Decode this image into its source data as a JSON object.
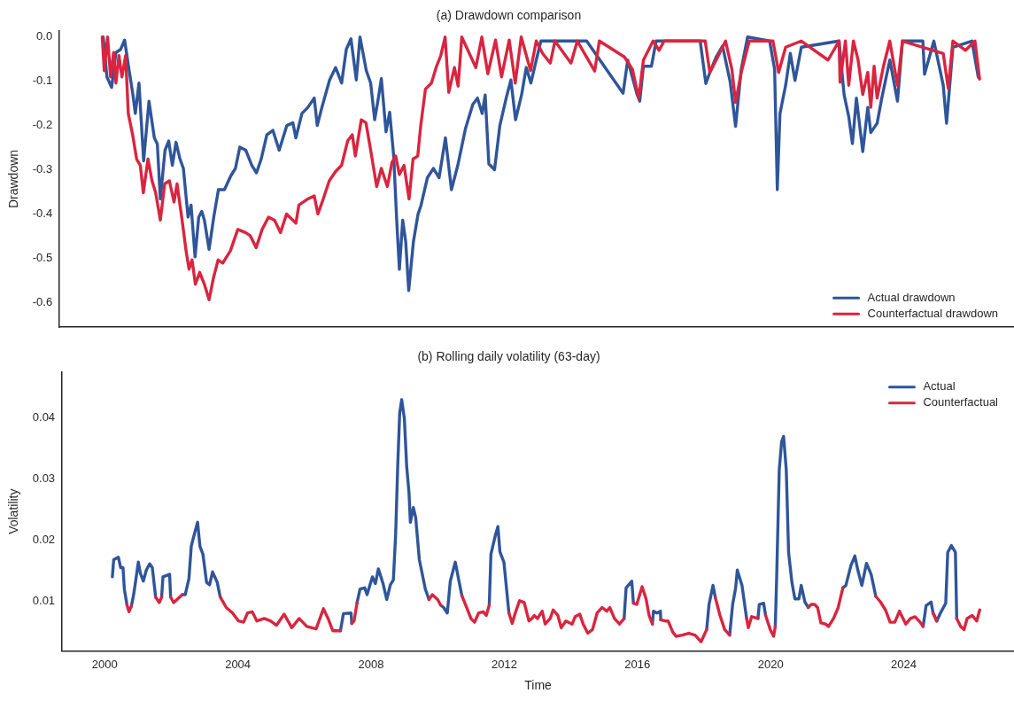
{
  "chart_data": [
    {
      "type": "line",
      "title": "(a) Drawdown comparison",
      "ylabel": "Drawdown",
      "xlim": [
        1998.72,
        2027.31
      ],
      "ylim": [
        -0.656,
        0.014
      ],
      "yticks": [
        {
          "value": 0,
          "label": "0.0"
        },
        -0.1,
        -0.2,
        -0.3,
        -0.4,
        -0.5,
        -0.6
      ],
      "tick_labels": "y",
      "legend": "bottom right",
      "series": [
        {
          "name": "Actual drawdown",
          "color": "#2f559a",
          "x": [
            2000.03,
            2000.14,
            2000.28,
            2000.41,
            2000.55,
            2000.67,
            2000.78,
            2000.92,
            2000.99,
            2001.1,
            2001.24,
            2001.4,
            2001.56,
            2001.65,
            2001.74,
            2001.88,
            2001.99,
            2002.1,
            2002.21,
            2002.33,
            2002.43,
            2002.57,
            2002.66,
            2002.78,
            2002.89,
            2002.98,
            2003.06,
            2003.2,
            2003.34,
            2003.48,
            2003.66,
            2003.85,
            2003.99,
            2004.12,
            2004.3,
            2004.48,
            2004.62,
            2004.76,
            2004.93,
            2005.11,
            2005.3,
            2005.53,
            2005.71,
            2005.8,
            2005.98,
            2006.16,
            2006.35,
            2006.44,
            2006.58,
            2006.81,
            2006.99,
            2007.17,
            2007.31,
            2007.45,
            2007.61,
            2007.72,
            2007.91,
            2008.04,
            2008.16,
            2008.27,
            2008.36,
            2008.5,
            2008.61,
            2008.73,
            2008.82,
            2008.9,
            2009.0,
            2009.09,
            2009.18,
            2009.32,
            2009.46,
            2009.55,
            2009.74,
            2009.92,
            2010.09,
            2010.28,
            2010.46,
            2010.65,
            2010.88,
            2011.1,
            2011.24,
            2011.38,
            2011.47,
            2011.58,
            2011.75,
            2011.91,
            2012.1,
            2012.24,
            2012.38,
            2012.56,
            2012.7,
            2012.84,
            2013.0,
            2013.14,
            2013.56,
            2014.51,
            2015.6,
            2015.74,
            2016.02,
            2016.1,
            2016.21,
            2016.45,
            2016.59,
            2017.91,
            2018.08,
            2018.2,
            2018.39,
            2018.58,
            2018.81,
            2018.97,
            2019.14,
            2019.33,
            2019.99,
            2020.14,
            2020.22,
            2020.3,
            2020.47,
            2020.61,
            2020.75,
            2020.94,
            2022.07,
            2022.22,
            2022.36,
            2022.47,
            2022.59,
            2022.69,
            2022.78,
            2022.93,
            2023.02,
            2023.21,
            2023.35,
            2023.59,
            2023.82,
            2023.97,
            2024.58,
            2024.63,
            2024.91,
            2025.19,
            2025.29,
            2025.48,
            2026.05,
            2026.24
          ],
          "values": [
            0,
            -0.09,
            -0.114,
            -0.035,
            -0.028,
            -0.007,
            -0.063,
            -0.131,
            -0.173,
            -0.104,
            -0.28,
            -0.145,
            -0.228,
            -0.242,
            -0.366,
            -0.256,
            -0.235,
            -0.29,
            -0.238,
            -0.276,
            -0.297,
            -0.407,
            -0.38,
            -0.497,
            -0.407,
            -0.394,
            -0.414,
            -0.48,
            -0.407,
            -0.345,
            -0.345,
            -0.314,
            -0.297,
            -0.249,
            -0.256,
            -0.29,
            -0.307,
            -0.276,
            -0.221,
            -0.211,
            -0.256,
            -0.2,
            -0.194,
            -0.228,
            -0.173,
            -0.159,
            -0.138,
            -0.2,
            -0.159,
            -0.097,
            -0.069,
            -0.104,
            -0.028,
            -0.004,
            -0.097,
            0,
            -0.076,
            -0.104,
            -0.187,
            -0.138,
            -0.094,
            -0.214,
            -0.17,
            -0.269,
            -0.414,
            -0.525,
            -0.414,
            -0.463,
            -0.573,
            -0.463,
            -0.4,
            -0.38,
            -0.318,
            -0.297,
            -0.318,
            -0.228,
            -0.345,
            -0.29,
            -0.207,
            -0.152,
            -0.138,
            -0.173,
            -0.131,
            -0.287,
            -0.3,
            -0.2,
            -0.138,
            -0.097,
            -0.187,
            -0.131,
            -0.069,
            -0.104,
            -0.052,
            -0.009,
            -0.009,
            -0.009,
            -0.127,
            -0.052,
            -0.13,
            -0.145,
            -0.066,
            -0.066,
            -0.009,
            -0.009,
            -0.105,
            -0.08,
            -0.045,
            -0.02,
            -0.102,
            -0.202,
            -0.073,
            0,
            -0.009,
            -0.073,
            -0.345,
            -0.173,
            -0.109,
            -0.037,
            -0.098,
            -0.023,
            -0.009,
            -0.13,
            -0.18,
            -0.241,
            -0.138,
            -0.202,
            -0.259,
            -0.159,
            -0.216,
            -0.195,
            -0.138,
            -0.052,
            -0.145,
            -0.009,
            -0.009,
            -0.084,
            -0.009,
            -0.109,
            -0.195,
            -0.023,
            -0.009,
            -0.091
          ]
        },
        {
          "name": "Counterfactual drawdown",
          "color": "#d9253f",
          "x": [
            2000.0,
            2000.06,
            2000.16,
            2000.25,
            2000.34,
            2000.41,
            2000.5,
            2000.59,
            2000.7,
            2000.78,
            2000.91,
            2001.03,
            2001.14,
            2001.23,
            2001.37,
            2001.49,
            2001.6,
            2001.74,
            2001.87,
            2002.01,
            2002.15,
            2002.24,
            2002.38,
            2002.51,
            2002.6,
            2002.69,
            2002.79,
            2002.92,
            2003.06,
            2003.2,
            2003.33,
            2003.47,
            2003.61,
            2003.84,
            2004.06,
            2004.29,
            2004.43,
            2004.61,
            2004.79,
            2004.98,
            2005.16,
            2005.34,
            2005.52,
            2005.8,
            2005.89,
            2006.16,
            2006.35,
            2006.46,
            2006.62,
            2006.8,
            2006.99,
            2007.17,
            2007.35,
            2007.49,
            2007.58,
            2007.76,
            2007.9,
            2008.04,
            2008.22,
            2008.36,
            2008.54,
            2008.68,
            2008.79,
            2008.9,
            2009.04,
            2009.19,
            2009.31,
            2009.45,
            2009.54,
            2009.68,
            2009.86,
            2010.0,
            2010.14,
            2010.27,
            2010.38,
            2010.55,
            2010.66,
            2010.77,
            2011.19,
            2011.37,
            2011.55,
            2011.78,
            2011.96,
            2012.19,
            2012.37,
            2012.55,
            2012.83,
            2013.0,
            2013.19,
            2013.42,
            2013.56,
            2014.04,
            2014.23,
            2014.75,
            2014.89,
            2015.64,
            2015.88,
            2016.07,
            2016.21,
            2016.5,
            2016.68,
            2016.83,
            2018.06,
            2018.2,
            2018.39,
            2018.67,
            2018.86,
            2018.97,
            2019.14,
            2019.38,
            2020.09,
            2020.26,
            2020.47,
            2020.94,
            2021.74,
            2022.07,
            2022.1,
            2022.26,
            2022.36,
            2022.5,
            2022.64,
            2022.78,
            2022.93,
            2023.02,
            2023.12,
            2023.21,
            2023.4,
            2023.59,
            2023.82,
            2023.97,
            2025.19,
            2025.34,
            2025.48,
            2025.86,
            2026.14,
            2026.28
          ],
          "values": [
            0,
            -0.076,
            0,
            -0.09,
            -0.035,
            -0.104,
            -0.042,
            -0.09,
            -0.042,
            -0.173,
            -0.221,
            -0.276,
            -0.29,
            -0.352,
            -0.276,
            -0.325,
            -0.352,
            -0.414,
            -0.332,
            -0.325,
            -0.373,
            -0.332,
            -0.407,
            -0.483,
            -0.525,
            -0.504,
            -0.559,
            -0.532,
            -0.559,
            -0.594,
            -0.545,
            -0.504,
            -0.511,
            -0.483,
            -0.435,
            -0.442,
            -0.449,
            -0.476,
            -0.435,
            -0.407,
            -0.414,
            -0.442,
            -0.4,
            -0.421,
            -0.38,
            -0.366,
            -0.359,
            -0.4,
            -0.366,
            -0.325,
            -0.304,
            -0.29,
            -0.235,
            -0.221,
            -0.269,
            -0.187,
            -0.194,
            -0.256,
            -0.338,
            -0.297,
            -0.338,
            -0.283,
            -0.269,
            -0.311,
            -0.29,
            -0.366,
            -0.276,
            -0.269,
            -0.2,
            -0.118,
            -0.104,
            -0.069,
            -0.042,
            0,
            -0.125,
            -0.069,
            -0.111,
            0,
            -0.069,
            0,
            -0.083,
            -0.007,
            -0.09,
            -0.007,
            -0.104,
            0,
            -0.076,
            -0.009,
            -0.037,
            -0.059,
            -0.009,
            -0.059,
            -0.009,
            -0.077,
            -0.009,
            -0.045,
            -0.073,
            -0.138,
            -0.052,
            -0.009,
            -0.03,
            -0.009,
            -0.009,
            -0.08,
            -0.052,
            -0.009,
            -0.073,
            -0.148,
            -0.08,
            -0.009,
            -0.009,
            -0.08,
            -0.023,
            -0.009,
            -0.052,
            -0.009,
            -0.102,
            -0.009,
            -0.109,
            -0.009,
            -0.052,
            -0.13,
            -0.08,
            -0.159,
            -0.066,
            -0.138,
            -0.066,
            -0.009,
            -0.109,
            -0.009,
            -0.037,
            -0.116,
            -0.009,
            -0.03,
            -0.009,
            -0.095
          ]
        }
      ]
    },
    {
      "type": "line",
      "title": "(b) Rolling daily volatility (63-day)",
      "xlabel": "Time",
      "ylabel": "Volatility",
      "xlim": [
        1998.72,
        2027.31
      ],
      "xticks": [
        2000,
        2004,
        2008,
        2012,
        2016,
        2020,
        2024
      ],
      "ylim": [
        0.0019,
        0.0474
      ],
      "yticks": [
        0.01,
        0.02,
        0.03,
        0.04
      ],
      "legend": "top right",
      "x": [
        2000.23,
        2000.27,
        2000.41,
        2000.48,
        2000.55,
        2000.59,
        2000.67,
        2000.73,
        2000.8,
        2000.87,
        2000.94,
        2001.01,
        2001.07,
        2001.16,
        2001.25,
        2001.35,
        2001.43,
        2001.53,
        2001.64,
        2001.71,
        2001.75,
        2001.95,
        2001.98,
        2002.07,
        2002.33,
        2002.42,
        2002.53,
        2002.6,
        2002.69,
        2002.79,
        2002.86,
        2002.95,
        2003.06,
        2003.15,
        2003.24,
        2003.38,
        2003.47,
        2003.65,
        2003.84,
        2004.02,
        2004.17,
        2004.29,
        2004.43,
        2004.57,
        2004.79,
        2004.98,
        2005.16,
        2005.39,
        2005.62,
        2005.84,
        2006.07,
        2006.35,
        2006.57,
        2006.71,
        2006.85,
        2007.08,
        2007.17,
        2007.4,
        2007.42,
        2007.49,
        2007.58,
        2007.67,
        2007.81,
        2007.88,
        2008.04,
        2008.13,
        2008.22,
        2008.36,
        2008.47,
        2008.58,
        2008.67,
        2008.74,
        2008.8,
        2008.86,
        2008.92,
        2009.0,
        2009.07,
        2009.14,
        2009.18,
        2009.27,
        2009.34,
        2009.45,
        2009.63,
        2009.74,
        2009.84,
        2010.0,
        2010.09,
        2010.18,
        2010.29,
        2010.38,
        2010.53,
        2010.64,
        2010.73,
        2010.87,
        2011.0,
        2011.11,
        2011.23,
        2011.37,
        2011.46,
        2011.55,
        2011.6,
        2011.73,
        2011.81,
        2011.87,
        2011.99,
        2012.14,
        2012.24,
        2012.33,
        2012.46,
        2012.6,
        2012.74,
        2012.83,
        2012.9,
        2013.0,
        2013.14,
        2013.23,
        2013.38,
        2013.47,
        2013.61,
        2013.71,
        2013.85,
        2014.04,
        2014.13,
        2014.27,
        2014.37,
        2014.51,
        2014.65,
        2014.79,
        2014.94,
        2015.08,
        2015.17,
        2015.31,
        2015.46,
        2015.6,
        2015.66,
        2015.83,
        2015.88,
        2015.98,
        2016.14,
        2016.26,
        2016.35,
        2016.45,
        2016.48,
        2016.59,
        2016.69,
        2016.7,
        2016.83,
        2016.92,
        2017.06,
        2017.16,
        2017.35,
        2017.54,
        2017.73,
        2017.91,
        2018.08,
        2018.15,
        2018.27,
        2018.34,
        2018.48,
        2018.62,
        2018.77,
        2018.86,
        2018.95,
        2019.0,
        2019.14,
        2019.28,
        2019.33,
        2019.43,
        2019.62,
        2019.66,
        2019.79,
        2019.85,
        2019.99,
        2020.09,
        2020.14,
        2020.18,
        2020.26,
        2020.33,
        2020.39,
        2020.47,
        2020.54,
        2020.64,
        2020.73,
        2020.85,
        2020.92,
        2021.03,
        2021.13,
        2021.22,
        2021.32,
        2021.41,
        2021.51,
        2021.65,
        2021.74,
        2021.89,
        2022.03,
        2022.17,
        2022.26,
        2022.41,
        2022.53,
        2022.62,
        2022.74,
        2022.88,
        2023.02,
        2023.16,
        2023.3,
        2023.45,
        2023.59,
        2023.73,
        2023.87,
        2024.06,
        2024.2,
        2024.34,
        2024.49,
        2024.58,
        2024.67,
        2024.82,
        2024.88,
        2024.99,
        2025.1,
        2025.26,
        2025.32,
        2025.43,
        2025.55,
        2025.59,
        2025.71,
        2025.81,
        2025.9,
        2026.05,
        2026.19,
        2026.28
      ],
      "series": [
        {
          "name": "Actual",
          "color": "#2f559a",
          "values": [
            0.014,
            0.0168,
            0.0172,
            0.0155,
            0.0155,
            0.012,
            0.0094,
            null,
            0.0092,
            0.0111,
            0.0137,
            0.0164,
            0.0146,
            0.0133,
            0.0151,
            0.0161,
            0.0155,
            0.0107,
            null,
            0.0107,
            0.014,
            0.0144,
            0.0107,
            null,
            0.0111,
            0.0111,
            0.0137,
            0.019,
            0.0209,
            0.0229,
            0.019,
            0.0177,
            0.0131,
            0.0127,
            0.0148,
            0.0131,
            0.0107,
            null,
            null,
            null,
            null,
            null,
            null,
            null,
            null,
            null,
            null,
            null,
            null,
            null,
            null,
            null,
            null,
            null,
            null,
            0.0052,
            0.008,
            0.0081,
            0.0064,
            null,
            0.0098,
            0.012,
            0.0122,
            0.0111,
            0.014,
            0.0129,
            0.0153,
            0.0129,
            0.0103,
            0.0127,
            0.0135,
            0.0211,
            0.032,
            0.0407,
            0.0429,
            0.0398,
            0.032,
            0.0277,
            0.0229,
            0.0253,
            0.0237,
            0.0168,
            0.012,
            0.0103,
            null,
            null,
            0.0094,
            0.009,
            0.0081,
            0.0133,
            0.0164,
            0.0133,
            0.0109,
            null,
            null,
            null,
            null,
            null,
            null,
            0.0094,
            0.0177,
            0.0207,
            0.0222,
            0.0181,
            0.0164,
            0.0081,
            null,
            null,
            null,
            null,
            null,
            null,
            null,
            null,
            null,
            null,
            null,
            null,
            null,
            null,
            null,
            null,
            null,
            null,
            null,
            null,
            null,
            null,
            null,
            null,
            null,
            null,
            null,
            0.0072,
            0.0122,
            0.0133,
            0.0097,
            null,
            null,
            null,
            null,
            0.0063,
            0.0084,
            0.0081,
            0.0084,
            0.007,
            null,
            null,
            null,
            null,
            null,
            null,
            null,
            null,
            0.0054,
            0.0095,
            0.0126,
            0.0106,
            null,
            null,
            0.0045,
            0.0095,
            0.0122,
            0.0151,
            0.0126,
            0.0072,
            null,
            null,
            0.0072,
            0.0095,
            0.0097,
            0.0077,
            null,
            null,
            0.0059,
            0.0135,
            0.0315,
            0.036,
            0.0369,
            0.0315,
            0.018,
            0.0131,
            0.0104,
            0.0104,
            0.0126,
            0.0099,
            0.009,
            null,
            null,
            null,
            null,
            null,
            null,
            null,
            null,
            0.0122,
            0.0126,
            0.0158,
            0.0174,
            0.0151,
            0.0126,
            0.0162,
            0.0144,
            0.0108,
            null,
            null,
            null,
            null,
            null,
            null,
            null,
            null,
            null,
            0.0059,
            0.0093,
            0.0099,
            0.0081,
            0.0068,
            0.0081,
            0.0097,
            0.018,
            0.0191,
            0.018,
            0.0072,
            null,
            null,
            null,
            null,
            null,
            null
          ]
        },
        {
          "name": "Counterfactual",
          "color": "#d9253f",
          "values": [
            null,
            null,
            null,
            null,
            null,
            null,
            0.0094,
            0.0083,
            0.0092,
            null,
            null,
            null,
            null,
            null,
            null,
            null,
            null,
            0.0107,
            0.0098,
            0.0107,
            null,
            null,
            0.0107,
            0.0098,
            0.0111,
            null,
            null,
            null,
            null,
            null,
            null,
            null,
            null,
            null,
            null,
            null,
            0.0107,
            0.009,
            0.0081,
            0.0068,
            0.0066,
            0.0081,
            0.0083,
            0.0068,
            0.0072,
            0.0068,
            0.0061,
            0.0079,
            0.0057,
            0.0072,
            0.0059,
            0.0055,
            0.0088,
            0.0072,
            0.0052,
            0.0052,
            null,
            null,
            0.0064,
            0.0068,
            0.0098,
            null,
            null,
            null,
            null,
            null,
            null,
            null,
            null,
            null,
            null,
            null,
            null,
            null,
            null,
            null,
            null,
            null,
            null,
            null,
            null,
            null,
            null,
            0.0103,
            0.0111,
            0.0103,
            0.0094,
            null,
            null,
            null,
            null,
            null,
            0.0109,
            0.009,
            0.0072,
            0.0066,
            0.0081,
            0.0083,
            0.0077,
            0.0094,
            null,
            null,
            null,
            null,
            null,
            0.0081,
            0.0064,
            0.0081,
            0.0101,
            0.0098,
            0.0068,
            0.0072,
            0.0077,
            0.0072,
            0.0084,
            0.0063,
            0.0072,
            0.0086,
            0.0077,
            0.0057,
            0.0068,
            0.0063,
            0.0075,
            0.0079,
            0.0063,
            0.0048,
            0.0054,
            0.0081,
            0.009,
            0.0084,
            0.009,
            0.0072,
            0.0063,
            0.0072,
            null,
            null,
            0.0097,
            0.0095,
            0.0124,
            0.0104,
            0.0077,
            0.0063,
            null,
            null,
            null,
            0.007,
            0.0068,
            0.0068,
            0.005,
            0.0043,
            0.0045,
            0.0048,
            0.0045,
            0.0034,
            0.0054,
            null,
            null,
            0.0106,
            0.0077,
            0.0054,
            0.0045,
            null,
            null,
            null,
            null,
            0.0072,
            0.0057,
            0.0075,
            0.0072,
            null,
            null,
            0.0077,
            0.0054,
            0.0043,
            0.0059,
            null,
            null,
            null,
            null,
            null,
            null,
            null,
            null,
            null,
            null,
            null,
            0.009,
            0.0095,
            0.0095,
            0.009,
            0.0065,
            0.0063,
            0.0059,
            0.0072,
            0.009,
            0.0122,
            null,
            null,
            null,
            null,
            null,
            null,
            null,
            0.0108,
            0.0099,
            0.0086,
            0.0066,
            0.0066,
            0.0084,
            0.0063,
            0.0072,
            0.0075,
            0.0066,
            0.0059,
            null,
            null,
            0.0081,
            0.0068,
            null,
            null,
            null,
            null,
            null,
            0.0072,
            0.0059,
            0.0054,
            0.0072,
            0.0077,
            0.0068,
            0.0086
          ]
        }
      ]
    }
  ]
}
